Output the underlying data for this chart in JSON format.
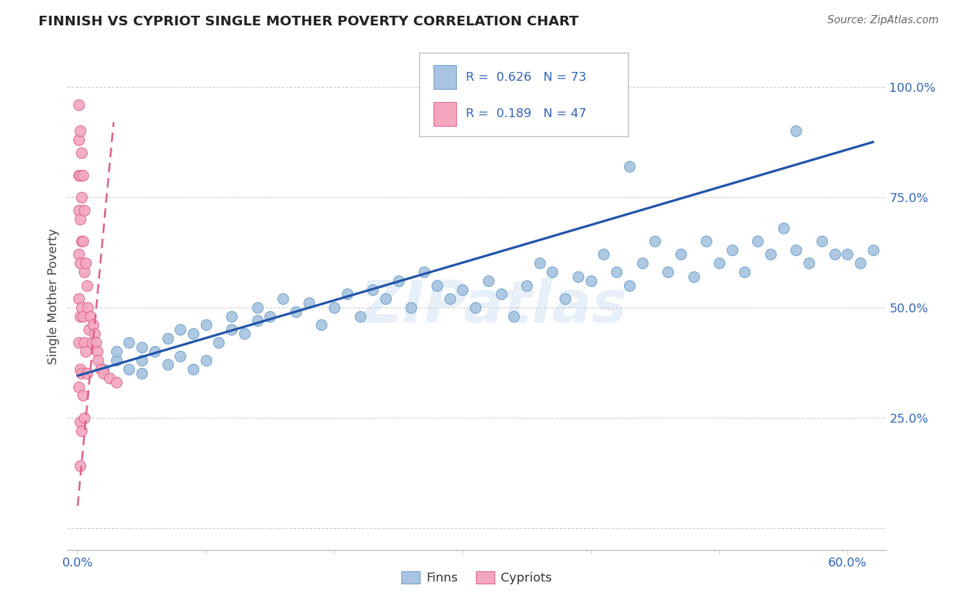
{
  "title": "FINNISH VS CYPRIOT SINGLE MOTHER POVERTY CORRELATION CHART",
  "source": "Source: ZipAtlas.com",
  "ylabel": "Single Mother Poverty",
  "watermark": "ZIPatlas",
  "legend_finn_R": "0.626",
  "legend_finn_N": "73",
  "legend_cyp_R": "0.189",
  "legend_cyp_N": "47",
  "xlim": [
    -0.008,
    0.63
  ],
  "ylim": [
    -0.05,
    1.1
  ],
  "finn_color": "#a8c4e0",
  "finn_edge_color": "#6da0cc",
  "cyp_color": "#f4a8be",
  "cyp_edge_color": "#e06090",
  "trend_finn_color": "#2255aa",
  "trend_cyp_color": "#e06090",
  "grid_color": "#cccccc",
  "background_color": "#ffffff",
  "finn_x": [
    0.02,
    0.03,
    0.03,
    0.04,
    0.04,
    0.05,
    0.05,
    0.05,
    0.06,
    0.07,
    0.07,
    0.08,
    0.08,
    0.09,
    0.09,
    0.1,
    0.1,
    0.11,
    0.12,
    0.12,
    0.13,
    0.14,
    0.14,
    0.15,
    0.16,
    0.17,
    0.18,
    0.19,
    0.2,
    0.21,
    0.22,
    0.23,
    0.24,
    0.25,
    0.26,
    0.27,
    0.28,
    0.29,
    0.3,
    0.31,
    0.32,
    0.33,
    0.34,
    0.35,
    0.36,
    0.37,
    0.38,
    0.39,
    0.4,
    0.41,
    0.42,
    0.43,
    0.44,
    0.45,
    0.46,
    0.47,
    0.48,
    0.49,
    0.5,
    0.51,
    0.52,
    0.53,
    0.54,
    0.55,
    0.56,
    0.57,
    0.58,
    0.59,
    0.6,
    0.61,
    0.62,
    0.43,
    0.56
  ],
  "finn_y": [
    0.36,
    0.38,
    0.4,
    0.36,
    0.42,
    0.35,
    0.38,
    0.41,
    0.4,
    0.37,
    0.43,
    0.39,
    0.45,
    0.36,
    0.44,
    0.38,
    0.46,
    0.42,
    0.45,
    0.48,
    0.44,
    0.5,
    0.47,
    0.48,
    0.52,
    0.49,
    0.51,
    0.46,
    0.5,
    0.53,
    0.48,
    0.54,
    0.52,
    0.56,
    0.5,
    0.58,
    0.55,
    0.52,
    0.54,
    0.5,
    0.56,
    0.53,
    0.48,
    0.55,
    0.6,
    0.58,
    0.52,
    0.57,
    0.56,
    0.62,
    0.58,
    0.55,
    0.6,
    0.65,
    0.58,
    0.62,
    0.57,
    0.65,
    0.6,
    0.63,
    0.58,
    0.65,
    0.62,
    0.68,
    0.63,
    0.6,
    0.65,
    0.62,
    0.62,
    0.6,
    0.63,
    0.82,
    0.9
  ],
  "cyp_x": [
    0.001,
    0.001,
    0.001,
    0.001,
    0.001,
    0.001,
    0.001,
    0.001,
    0.002,
    0.002,
    0.002,
    0.002,
    0.002,
    0.002,
    0.002,
    0.002,
    0.003,
    0.003,
    0.003,
    0.003,
    0.003,
    0.003,
    0.004,
    0.004,
    0.004,
    0.004,
    0.005,
    0.005,
    0.005,
    0.005,
    0.006,
    0.006,
    0.007,
    0.007,
    0.008,
    0.009,
    0.01,
    0.011,
    0.012,
    0.013,
    0.014,
    0.015,
    0.016,
    0.018,
    0.02,
    0.025,
    0.03
  ],
  "cyp_y": [
    0.96,
    0.88,
    0.8,
    0.72,
    0.62,
    0.52,
    0.42,
    0.32,
    0.9,
    0.8,
    0.7,
    0.6,
    0.48,
    0.36,
    0.24,
    0.14,
    0.85,
    0.75,
    0.65,
    0.5,
    0.35,
    0.22,
    0.8,
    0.65,
    0.48,
    0.3,
    0.72,
    0.58,
    0.42,
    0.25,
    0.6,
    0.4,
    0.55,
    0.35,
    0.5,
    0.45,
    0.48,
    0.42,
    0.46,
    0.44,
    0.42,
    0.4,
    0.38,
    0.36,
    0.35,
    0.34,
    0.33
  ],
  "finn_line_x": [
    0.0,
    0.62
  ],
  "finn_line_y": [
    0.345,
    0.875
  ],
  "cyp_line_x": [
    0.0,
    0.028
  ],
  "cyp_line_y": [
    0.05,
    0.92
  ]
}
